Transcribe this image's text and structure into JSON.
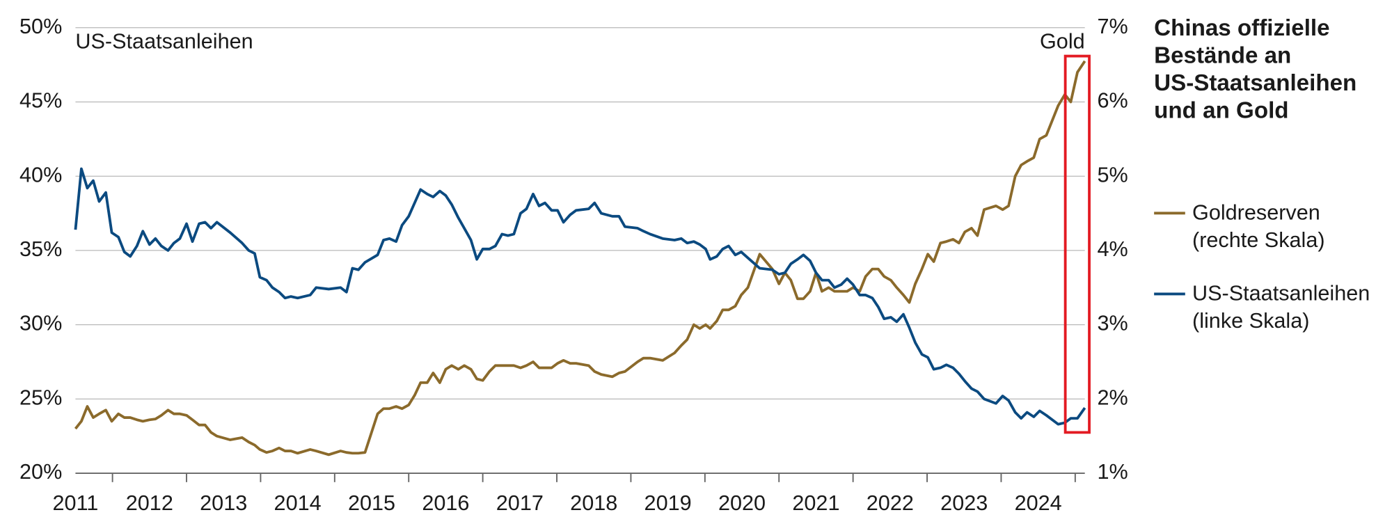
{
  "chart_data": {
    "type": "line",
    "title": [
      "Chinas offizielle",
      "Bestände an",
      "US-Staatsanleihen",
      "und an Gold"
    ],
    "annotations": [
      "US-Staatsanleihen",
      "Gold"
    ],
    "x": [
      2011.0,
      2011.08,
      2011.16,
      2011.24,
      2011.32,
      2011.41,
      2011.49,
      2011.58,
      2011.66,
      2011.74,
      2011.83,
      2011.91,
      2012.0,
      2012.08,
      2012.16,
      2012.25,
      2012.33,
      2012.41,
      2012.5,
      2012.58,
      2012.67,
      2012.75,
      2012.83,
      2012.91,
      2013.09,
      2013.25,
      2013.34,
      2013.42,
      2013.49,
      2013.58,
      2013.66,
      2013.75,
      2013.83,
      2013.91,
      2014.0,
      2014.17,
      2014.25,
      2014.42,
      2014.58,
      2014.66,
      2014.74,
      2014.82,
      2014.91,
      2015.08,
      2015.16,
      2015.24,
      2015.33,
      2015.41,
      2015.5,
      2015.58,
      2015.66,
      2015.75,
      2015.83,
      2015.92,
      2016.0,
      2016.08,
      2016.17,
      2016.25,
      2016.34,
      2016.42,
      2016.5,
      2016.59,
      2016.67,
      2016.76,
      2016.84,
      2016.92,
      2017.01,
      2017.09,
      2017.18,
      2017.26,
      2017.34,
      2017.43,
      2017.51,
      2017.59,
      2017.68,
      2017.76,
      2017.93,
      2018.01,
      2018.1,
      2018.25,
      2018.34,
      2018.42,
      2018.59,
      2018.67,
      2018.76,
      2018.93,
      2019.09,
      2019.18,
      2019.26,
      2019.35,
      2019.43,
      2019.51,
      2019.57,
      2019.66,
      2019.74,
      2019.82,
      2019.91,
      2019.99,
      2020.08,
      2020.24,
      2020.41,
      2020.5,
      2020.58,
      2020.66,
      2020.75,
      2020.83,
      2020.92,
      2021.0,
      2021.08,
      2021.17,
      2021.25,
      2021.34,
      2021.42,
      2021.5,
      2021.59,
      2021.67,
      2021.76,
      2021.84,
      2021.92,
      2022.01,
      2022.09,
      2022.18,
      2022.26,
      2022.34,
      2022.43,
      2022.51,
      2022.59,
      2022.68,
      2022.76,
      2022.85,
      2022.93,
      2023.01,
      2023.1,
      2023.18,
      2023.27,
      2023.43,
      2023.52,
      2023.6,
      2023.69,
      2023.77,
      2023.85,
      2023.94,
      2024.02,
      2024.11,
      2024.27,
      2024.36,
      2024.44,
      2024.53,
      2024.63
    ],
    "series": [
      {
        "name": "Goldreserven (rechte Skala)",
        "color": "#8b6a2b",
        "axis": "y2",
        "values": [
          1.6,
          1.7,
          1.9,
          1.75,
          1.8,
          1.85,
          1.7,
          1.8,
          1.75,
          1.75,
          1.72,
          1.7,
          1.72,
          1.73,
          1.78,
          1.85,
          1.8,
          1.8,
          1.78,
          1.72,
          1.65,
          1.65,
          1.55,
          1.5,
          1.45,
          1.48,
          1.42,
          1.38,
          1.32,
          1.28,
          1.3,
          1.34,
          1.3,
          1.3,
          1.27,
          1.32,
          1.3,
          1.25,
          1.3,
          1.28,
          1.27,
          1.27,
          1.28,
          1.8,
          1.87,
          1.87,
          1.9,
          1.87,
          1.92,
          2.05,
          2.22,
          2.22,
          2.35,
          2.22,
          2.4,
          2.45,
          2.4,
          2.45,
          2.4,
          2.27,
          2.25,
          2.37,
          2.45,
          2.45,
          2.45,
          2.45,
          2.42,
          2.45,
          2.5,
          2.42,
          2.42,
          2.42,
          2.48,
          2.52,
          2.48,
          2.48,
          2.45,
          2.37,
          2.33,
          2.3,
          2.35,
          2.37,
          2.5,
          2.55,
          2.55,
          2.52,
          2.62,
          2.72,
          2.8,
          3.0,
          2.95,
          3.0,
          2.95,
          3.05,
          3.2,
          3.2,
          3.25,
          3.4,
          3.5,
          3.95,
          3.75,
          3.55,
          3.7,
          3.6,
          3.35,
          3.35,
          3.45,
          3.7,
          3.45,
          3.5,
          3.45,
          3.45,
          3.45,
          3.5,
          3.45,
          3.65,
          3.75,
          3.75,
          3.65,
          3.6,
          3.5,
          3.4,
          3.3,
          3.55,
          3.75,
          3.95,
          3.85,
          4.1,
          4.12,
          4.15,
          4.1,
          4.25,
          4.3,
          4.2,
          4.55,
          4.6,
          4.55,
          4.6,
          5.0,
          5.15,
          5.2,
          5.25,
          5.5,
          5.55,
          5.95,
          6.1,
          6.0,
          6.4,
          6.55
        ]
      },
      {
        "name": "US-Staatsanleihen (linke Skala)",
        "color": "#0b4a80",
        "axis": "y",
        "values": [
          36.4,
          40.5,
          39.2,
          39.7,
          38.3,
          38.9,
          36.2,
          35.9,
          34.9,
          34.6,
          35.3,
          36.3,
          35.4,
          35.8,
          35.3,
          35.0,
          35.5,
          35.8,
          36.8,
          35.6,
          36.8,
          36.9,
          36.5,
          36.9,
          36.2,
          35.5,
          35.0,
          34.8,
          33.2,
          33.0,
          32.5,
          32.2,
          31.8,
          31.9,
          31.8,
          32.0,
          32.5,
          32.4,
          32.5,
          32.2,
          33.8,
          33.7,
          34.2,
          34.7,
          35.7,
          35.8,
          35.6,
          36.7,
          37.3,
          38.2,
          39.1,
          38.8,
          38.6,
          39.0,
          38.7,
          38.1,
          37.2,
          36.5,
          35.7,
          34.4,
          35.1,
          35.1,
          35.3,
          36.1,
          36.0,
          36.1,
          37.5,
          37.8,
          38.8,
          38.0,
          38.2,
          37.7,
          37.7,
          36.9,
          37.4,
          37.7,
          37.8,
          38.2,
          37.5,
          37.3,
          37.3,
          36.6,
          36.5,
          36.3,
          36.1,
          35.8,
          35.7,
          35.8,
          35.5,
          35.6,
          35.4,
          35.1,
          34.4,
          34.6,
          35.1,
          35.3,
          34.7,
          34.9,
          34.5,
          33.8,
          33.7,
          33.4,
          33.5,
          34.1,
          34.4,
          34.7,
          34.3,
          33.5,
          33.0,
          33.0,
          32.5,
          32.7,
          33.1,
          32.7,
          32.0,
          32.0,
          31.8,
          31.2,
          30.4,
          30.5,
          30.2,
          30.7,
          29.8,
          28.8,
          28.0,
          27.8,
          27.0,
          27.1,
          27.3,
          27.1,
          26.7,
          26.2,
          25.7,
          25.5,
          25.0,
          24.7,
          25.2,
          24.9,
          24.1,
          23.7,
          24.1,
          23.8,
          24.2,
          23.9,
          23.3,
          23.4,
          23.7,
          23.7,
          24.4
        ]
      }
    ],
    "xlim": [
      2011,
      2024.63
    ],
    "xticks": [
      2011,
      2012,
      2013,
      2014,
      2015,
      2016,
      2017,
      2018,
      2019,
      2020,
      2021,
      2022,
      2023,
      2024
    ],
    "ylim": [
      20,
      50
    ],
    "yticks": [
      {
        "value": 20,
        "label": "20%"
      },
      {
        "value": 25,
        "label": "25%"
      },
      {
        "value": 30,
        "label": "30%"
      },
      {
        "value": 35,
        "label": "35%"
      },
      {
        "value": 40,
        "label": "40%"
      },
      {
        "value": 45,
        "label": "45%"
      },
      {
        "value": 50,
        "label": "50%"
      }
    ],
    "y2lim": [
      1,
      7
    ],
    "y2ticks": [
      {
        "value": 1,
        "label": "1%"
      },
      {
        "value": 2,
        "label": "2%"
      },
      {
        "value": 3,
        "label": "3%"
      },
      {
        "value": 4,
        "label": "4%"
      },
      {
        "value": 5,
        "label": "5%"
      },
      {
        "value": 6,
        "label": "6%"
      },
      {
        "value": 7,
        "label": "7%"
      }
    ],
    "grid": true
  }
}
